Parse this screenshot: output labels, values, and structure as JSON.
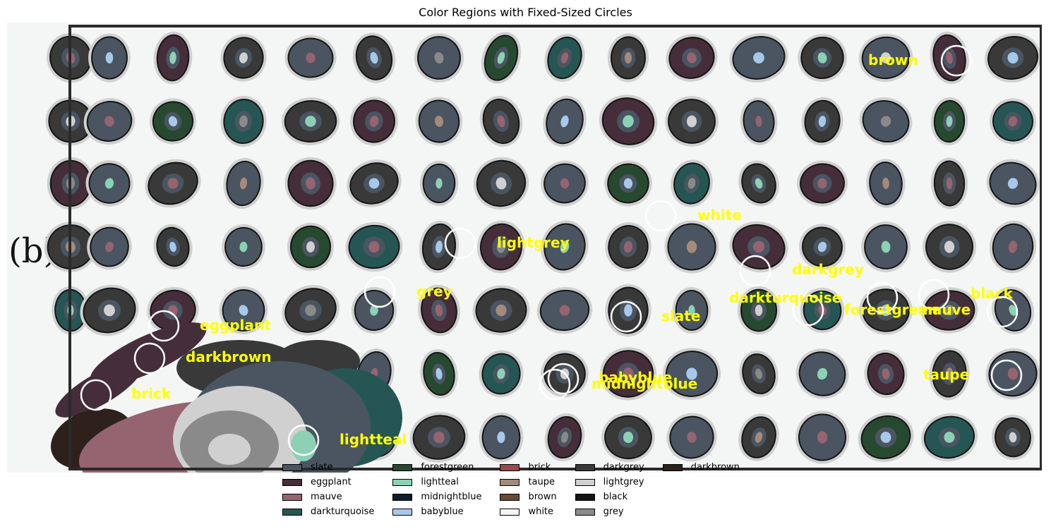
{
  "figure": {
    "title": "Color Regions with Fixed-Sized Circles",
    "panel_label": "(b)"
  },
  "palette": {
    "slate": "#4a5561",
    "eggplant": "#452d3a",
    "mauve": "#956470",
    "darkturquoise": "#255653",
    "forestgreen": "#27492f",
    "lightteal": "#8cd1b5",
    "midnightblue": "#0f1c2b",
    "babyblue": "#a8c8ea",
    "brick": "#9a4a4a",
    "taupe": "#a48a7c",
    "brown": "#6a4a34",
    "white": "#f4f6f5",
    "darkgrey": "#393939",
    "lightgrey": "#d0d0d0",
    "black": "#141414",
    "grey": "#8a8a8a",
    "darkbrown": "#2e201c",
    "label_color": "#ffff00",
    "circle_color": "#ffffff"
  },
  "annotations": [
    {
      "label": "brown"
    },
    {
      "label": "white"
    },
    {
      "label": "lightgrey"
    },
    {
      "label": "darkgrey"
    },
    {
      "label": "grey"
    },
    {
      "label": "darkturquoise"
    },
    {
      "label": "black"
    },
    {
      "label": "forestgreen"
    },
    {
      "label": "mauve"
    },
    {
      "label": "eggplant"
    },
    {
      "label": "slate"
    },
    {
      "label": "darkbrown"
    },
    {
      "label": "babyblue"
    },
    {
      "label": "midnightblue"
    },
    {
      "label": "taupe"
    },
    {
      "label": "brick"
    },
    {
      "label": "lightteal"
    }
  ],
  "legend": [
    {
      "label": "slate",
      "color": "#4a5561"
    },
    {
      "label": "eggplant",
      "color": "#452d3a"
    },
    {
      "label": "mauve",
      "color": "#956470"
    },
    {
      "label": "darkturquoise",
      "color": "#255653"
    },
    {
      "label": "forestgreen",
      "color": "#27492f"
    },
    {
      "label": "lightteal",
      "color": "#8cd1b5"
    },
    {
      "label": "midnightblue",
      "color": "#0f1c2b"
    },
    {
      "label": "babyblue",
      "color": "#a8c8ea"
    },
    {
      "label": "brick",
      "color": "#9a4a4a"
    },
    {
      "label": "taupe",
      "color": "#a48a7c"
    },
    {
      "label": "brown",
      "color": "#6a4a34"
    },
    {
      "label": "white",
      "color": "#f4f6f5"
    },
    {
      "label": "darkgrey",
      "color": "#393939"
    },
    {
      "label": "lightgrey",
      "color": "#d0d0d0"
    },
    {
      "label": "black",
      "color": "#141414"
    },
    {
      "label": "grey",
      "color": "#8a8a8a"
    },
    {
      "label": "darkbrown",
      "color": "#2e201c"
    }
  ]
}
